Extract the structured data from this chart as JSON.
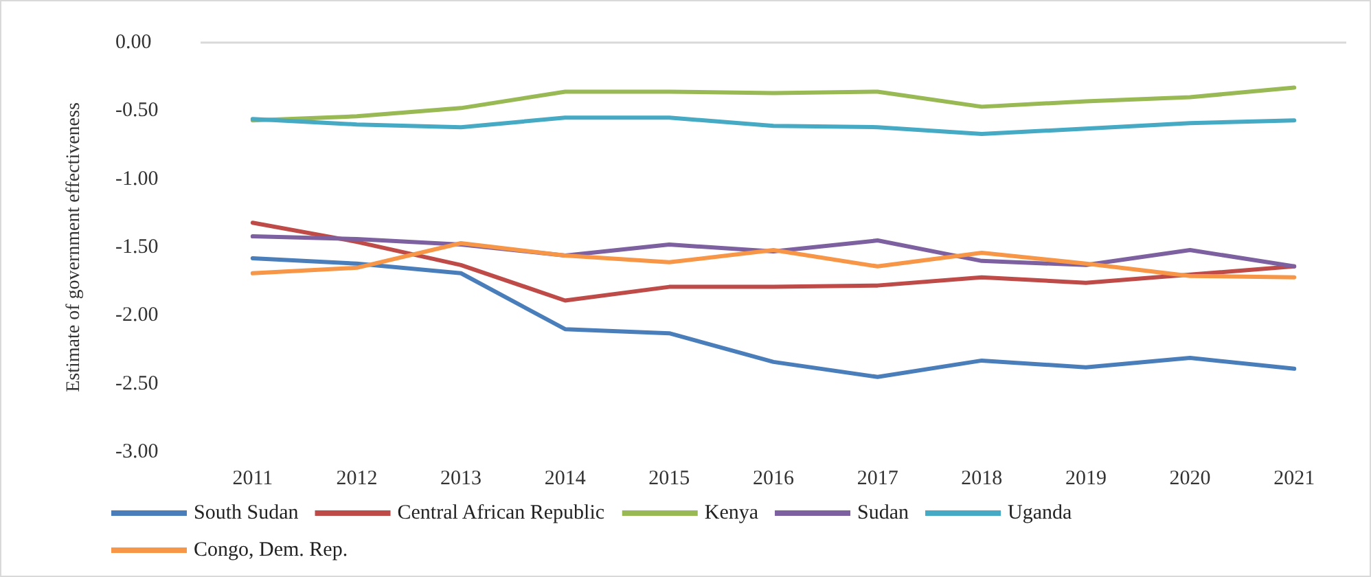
{
  "chart_data": {
    "type": "line",
    "ylabel": "Estimate of government effectiveness",
    "categories": [
      "2011",
      "2012",
      "2013",
      "2014",
      "2015",
      "2016",
      "2017",
      "2018",
      "2019",
      "2020",
      "2021"
    ],
    "series": [
      {
        "name": "South Sudan",
        "color": "#4a7ebb",
        "values": [
          -1.58,
          -1.62,
          -1.69,
          -2.1,
          -2.13,
          -2.34,
          -2.45,
          -2.33,
          -2.38,
          -2.31,
          -2.39
        ]
      },
      {
        "name": "Central African Republic",
        "color": "#be4b48",
        "values": [
          -1.32,
          -1.46,
          -1.63,
          -1.89,
          -1.79,
          -1.79,
          -1.78,
          -1.72,
          -1.76,
          -1.7,
          -1.64
        ]
      },
      {
        "name": "Kenya",
        "color": "#98b954",
        "values": [
          -0.57,
          -0.54,
          -0.48,
          -0.36,
          -0.36,
          -0.37,
          -0.36,
          -0.47,
          -0.43,
          -0.4,
          -0.33
        ]
      },
      {
        "name": "Sudan",
        "color": "#7d60a0",
        "values": [
          -1.42,
          -1.44,
          -1.48,
          -1.56,
          -1.48,
          -1.53,
          -1.45,
          -1.6,
          -1.63,
          -1.52,
          -1.64
        ]
      },
      {
        "name": "Uganda",
        "color": "#46aac5",
        "values": [
          -0.56,
          -0.6,
          -0.62,
          -0.55,
          -0.55,
          -0.61,
          -0.62,
          -0.67,
          -0.63,
          -0.59,
          -0.57
        ]
      },
      {
        "name": "Congo, Dem. Rep.",
        "color": "#f79646",
        "values": [
          -1.69,
          -1.65,
          -1.47,
          -1.56,
          -1.61,
          -1.52,
          -1.64,
          -1.54,
          -1.62,
          -1.71,
          -1.72
        ]
      }
    ],
    "ylim": [
      -3,
      0
    ],
    "yticks": [
      {
        "value": -3,
        "label": "-3.00"
      },
      {
        "value": -2.5,
        "label": "-2.50"
      },
      {
        "value": -2,
        "label": "-2.00"
      },
      {
        "value": -1.5,
        "label": "-1.50"
      },
      {
        "value": -1,
        "label": "-1.00"
      },
      {
        "value": -0.5,
        "label": "-0.50"
      },
      {
        "value": 0,
        "label": "0.00"
      }
    ],
    "grid": false,
    "ref_lines": [
      {
        "axis": "y",
        "value": 0
      }
    ],
    "legend": "bottom",
    "marker": "none",
    "line_style": "solid"
  }
}
